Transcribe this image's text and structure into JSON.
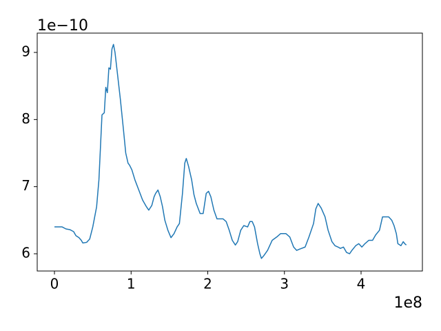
{
  "chart_data": {
    "type": "line",
    "y_offset_label": "1e−10",
    "x_offset_label": "1e8",
    "x": [
      0,
      0.1,
      0.15,
      0.2,
      0.25,
      0.28,
      0.32,
      0.35,
      0.37,
      0.42,
      0.46,
      0.5,
      0.55,
      0.58,
      0.62,
      0.65,
      0.67,
      0.69,
      0.71,
      0.73,
      0.75,
      0.77,
      0.79,
      0.82,
      0.86,
      0.9,
      0.93,
      0.96,
      0.98,
      1.01,
      1.05,
      1.1,
      1.15,
      1.2,
      1.23,
      1.27,
      1.3,
      1.32,
      1.35,
      1.38,
      1.41,
      1.44,
      1.48,
      1.52,
      1.56,
      1.6,
      1.63,
      1.67,
      1.7,
      1.72,
      1.75,
      1.79,
      1.82,
      1.85,
      1.9,
      1.94,
      1.98,
      2.01,
      2.04,
      2.08,
      2.12,
      2.15,
      2.2,
      2.24,
      2.28,
      2.32,
      2.36,
      2.39,
      2.43,
      2.47,
      2.52,
      2.55,
      2.58,
      2.61,
      2.65,
      2.68,
      2.7,
      2.73,
      2.78,
      2.84,
      2.9,
      2.95,
      3.02,
      3.07,
      3.12,
      3.16,
      3.2,
      3.27,
      3.32,
      3.38,
      3.41,
      3.44,
      3.48,
      3.53,
      3.57,
      3.62,
      3.66,
      3.7,
      3.73,
      3.77,
      3.81,
      3.85,
      3.88,
      3.93,
      3.97,
      4.01,
      4.05,
      4.1,
      4.15,
      4.19,
      4.24,
      4.28,
      4.32,
      4.36,
      4.4,
      4.43,
      4.46,
      4.48,
      4.52,
      4.55,
      4.57,
      4.59
    ],
    "series": [
      {
        "color": "#1f77b4",
        "values": [
          6.4,
          6.4,
          6.37,
          6.36,
          6.33,
          6.27,
          6.24,
          6.2,
          6.16,
          6.17,
          6.22,
          6.4,
          6.7,
          7.1,
          8.07,
          8.1,
          8.48,
          8.4,
          8.77,
          8.75,
          9.05,
          9.12,
          9.0,
          8.7,
          8.3,
          7.85,
          7.5,
          7.35,
          7.32,
          7.25,
          7.1,
          6.95,
          6.8,
          6.7,
          6.65,
          6.72,
          6.85,
          6.9,
          6.95,
          6.85,
          6.7,
          6.5,
          6.35,
          6.24,
          6.3,
          6.4,
          6.45,
          6.9,
          7.35,
          7.42,
          7.3,
          7.1,
          6.88,
          6.75,
          6.6,
          6.6,
          6.9,
          6.93,
          6.85,
          6.65,
          6.52,
          6.52,
          6.52,
          6.48,
          6.35,
          6.2,
          6.13,
          6.18,
          6.35,
          6.42,
          6.4,
          6.48,
          6.48,
          6.4,
          6.15,
          6.0,
          5.93,
          5.97,
          6.05,
          6.2,
          6.25,
          6.3,
          6.3,
          6.25,
          6.1,
          6.05,
          6.07,
          6.1,
          6.25,
          6.45,
          6.67,
          6.75,
          6.68,
          6.55,
          6.35,
          6.18,
          6.12,
          6.1,
          6.08,
          6.1,
          6.02,
          6.0,
          6.05,
          6.12,
          6.15,
          6.1,
          6.15,
          6.2,
          6.2,
          6.28,
          6.35,
          6.55,
          6.55,
          6.55,
          6.5,
          6.42,
          6.3,
          6.15,
          6.12,
          6.18,
          6.15,
          6.13
        ]
      }
    ],
    "xlim": [
      -0.225,
      4.8
    ],
    "ylim": [
      5.743,
      9.288
    ],
    "xticks": [
      0,
      1,
      2,
      3,
      4
    ],
    "yticks": [
      6,
      7,
      8,
      9
    ]
  }
}
